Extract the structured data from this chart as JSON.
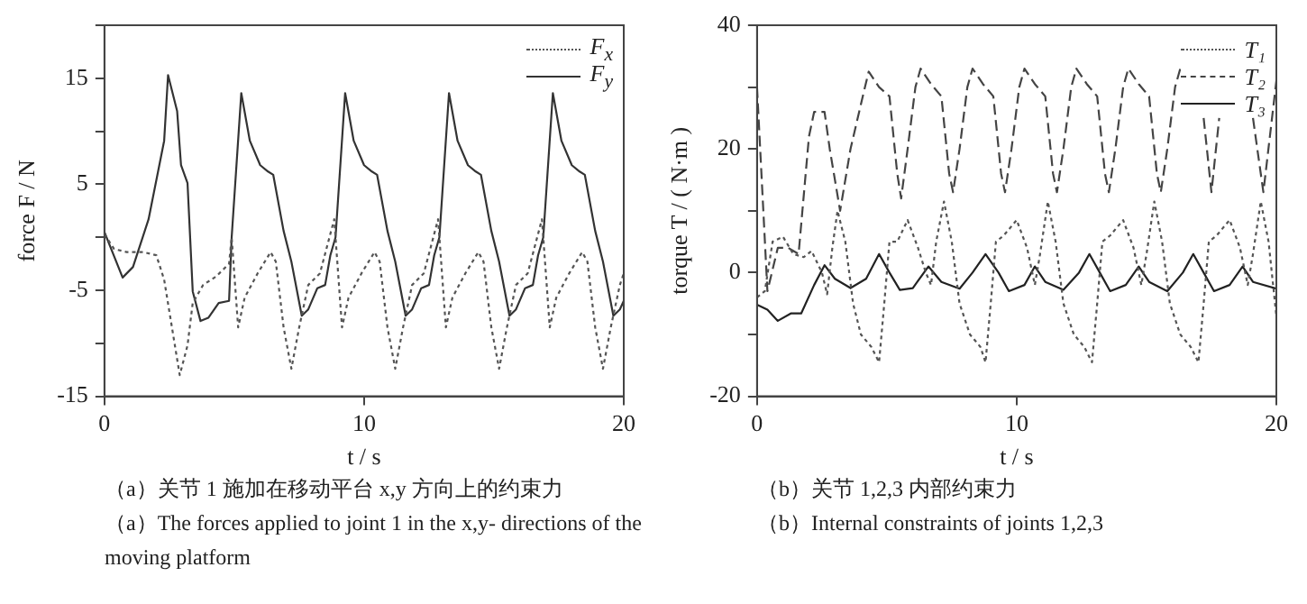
{
  "chart_data": [
    {
      "type": "line",
      "xlabel": "t / s",
      "ylabel": "force F / N",
      "xlim": [
        0,
        20
      ],
      "xticks": [
        0,
        10,
        20
      ],
      "ylim": [
        -15,
        20
      ],
      "yticks": [
        -15,
        {
          "value": -10,
          "label": null
        },
        -5,
        {
          "value": 0,
          "label": null
        },
        5,
        {
          "value": 10,
          "label": null
        },
        15,
        {
          "value": 20,
          "label": null
        }
      ],
      "grid": false,
      "legend": "top right",
      "marker": "none",
      "annotations": [
        "（a）关节 1 施加在移动平台 x,y 方向上的约束力",
        "（a）The forces applied to joint 1 in the x,y- directions of the moving platform"
      ],
      "series": [
        {
          "name": "F$_{x}$",
          "color": "#555555",
          "line_style": "dotted",
          "x": [
            0,
            0.37,
            0.86,
            1.5,
            2.0,
            2.3,
            2.6,
            2.9,
            3.2,
            3.4,
            3.8,
            4.3,
            4.8,
            4.9,
            5.15,
            5.4,
            5.9,
            6.4,
            6.6,
            6.9,
            7.2,
            7.5,
            7.85,
            8.3,
            8.85,
            9.15,
            9.4,
            9.9,
            10.4,
            10.6,
            10.9,
            11.2,
            11.5,
            11.85,
            12.3,
            12.85,
            13.15,
            13.4,
            13.9,
            14.4,
            14.6,
            14.9,
            15.2,
            15.5,
            15.85,
            16.3,
            16.85,
            17.15,
            17.4,
            17.9,
            18.4,
            18.6,
            18.9,
            19.2,
            19.5,
            19.85,
            20
          ],
          "values": [
            0.3,
            -1.1,
            -1.4,
            -1.4,
            -1.7,
            -4,
            -8.5,
            -13,
            -10.2,
            -6.2,
            -4.5,
            -3.7,
            -2.5,
            0,
            -8.5,
            -5.7,
            -3.4,
            -1.4,
            -2.3,
            -8.5,
            -12.4,
            -8.5,
            -4.5,
            -3.4,
            1.7,
            -8.5,
            -5.7,
            -3.4,
            -1.4,
            -2.3,
            -8.5,
            -12.4,
            -8.5,
            -4.5,
            -3.4,
            1.7,
            -8.5,
            -5.7,
            -3.4,
            -1.4,
            -2.3,
            -8.5,
            -12.4,
            -8.5,
            -4.5,
            -3.4,
            1.7,
            -8.5,
            -5.7,
            -3.4,
            -1.4,
            -2.3,
            -8.5,
            -12.4,
            -8.5,
            -4.5,
            -3.4
          ]
        },
        {
          "name": "F$_{y}$",
          "color": "#333333",
          "line_style": "solid",
          "x": [
            0,
            0.7,
            1.1,
            1.7,
            2.3,
            2.45,
            2.8,
            2.95,
            3.2,
            3.4,
            3.7,
            4.0,
            4.4,
            4.8,
            4.9,
            5.27,
            5.6,
            6.0,
            6.3,
            6.5,
            6.9,
            7.2,
            7.6,
            7.85,
            8.2,
            8.5,
            8.7,
            8.9,
            9.27,
            9.6,
            10.0,
            10.3,
            10.5,
            10.9,
            11.2,
            11.6,
            11.85,
            12.2,
            12.5,
            12.7,
            12.9,
            13.27,
            13.6,
            14.0,
            14.3,
            14.5,
            14.9,
            15.2,
            15.6,
            15.85,
            16.2,
            16.5,
            16.7,
            16.9,
            17.27,
            17.6,
            18.0,
            18.3,
            18.5,
            18.9,
            19.2,
            19.6,
            19.85,
            20
          ],
          "values": [
            0.5,
            -3.8,
            -2.8,
            1.7,
            9.1,
            15.3,
            11.9,
            6.8,
            5.1,
            -5.1,
            -7.9,
            -7.6,
            -6.2,
            -6,
            0,
            13.6,
            9.1,
            6.8,
            6.2,
            5.9,
            0.6,
            -2.3,
            -7.4,
            -6.8,
            -4.8,
            -4.5,
            -1.7,
            0,
            13.6,
            9.1,
            6.8,
            6.2,
            5.9,
            0.6,
            -2.3,
            -7.4,
            -6.8,
            -4.8,
            -4.5,
            -1.7,
            0,
            13.6,
            9.1,
            6.8,
            6.2,
            5.9,
            0.6,
            -2.3,
            -7.4,
            -6.8,
            -4.8,
            -4.5,
            -1.7,
            0,
            13.6,
            9.1,
            6.8,
            6.2,
            5.9,
            0.6,
            -2.3,
            -7.4,
            -6.8,
            -6
          ]
        }
      ]
    },
    {
      "type": "line",
      "xlabel": "t / s",
      "ylabel": "torque T / ( N·m )",
      "xlim": [
        0,
        20
      ],
      "xticks": [
        0,
        10,
        20
      ],
      "ylim": [
        -20,
        40
      ],
      "yticks": [
        -20,
        {
          "value": -10,
          "label": null
        },
        0,
        {
          "value": 10,
          "label": null
        },
        20,
        {
          "value": 30,
          "label": null
        },
        40
      ],
      "grid": false,
      "legend": "top right",
      "marker": "none",
      "annotations": [
        "（b）关节 1,2,3 内部约束力",
        "（b）Internal constraints of joints 1,2,3"
      ],
      "series": [
        {
          "name": "T₁",
          "color": "#555555",
          "line_style": "dotted",
          "x": [
            0,
            0.3,
            0.6,
            1.0,
            1.4,
            1.8,
            2.1,
            2.5,
            2.7,
            2.9,
            3.1,
            3.4,
            3.7,
            4.0,
            4.4,
            4.7,
            4.9,
            5.1,
            5.4,
            5.8,
            6.2,
            6.5,
            6.7,
            6.9,
            7.2,
            7.5,
            7.8,
            8.2,
            8.6,
            8.8,
            9.0,
            9.2,
            9.5,
            10.0,
            10.4,
            10.7,
            10.9,
            11.2,
            11.5,
            11.8,
            12.2,
            12.6,
            12.9,
            13.1,
            13.3,
            13.6,
            14.1,
            14.5,
            14.8,
            15.0,
            15.3,
            15.6,
            15.9,
            16.3,
            16.7,
            17.0,
            17.2,
            17.4,
            17.7,
            18.2,
            18.6,
            18.9,
            19.1,
            19.4,
            19.7,
            20
          ],
          "values": [
            -4,
            -3,
            5,
            5.8,
            3,
            2.5,
            3.5,
            0,
            -3.5,
            4,
            10,
            5,
            -5,
            -10,
            -12,
            -14.5,
            -5,
            5,
            5,
            8.5,
            4,
            0,
            -2,
            5,
            11.5,
            5,
            -5,
            -10,
            -12,
            -14.5,
            -5,
            5,
            6,
            8.5,
            4,
            -2,
            3,
            11.5,
            5,
            -5,
            -10,
            -12,
            -14.5,
            -5,
            5,
            6,
            8.5,
            4,
            -2,
            3,
            11.5,
            5,
            -5,
            -10,
            -12,
            -14.5,
            -5,
            5,
            6,
            8.5,
            4,
            -2,
            3,
            11.5,
            5,
            -7
          ]
        },
        {
          "name": "T₂",
          "color": "#444444",
          "line_style": "dashed",
          "x": [
            0,
            0.4,
            0.8,
            1.2,
            1.6,
            2.0,
            2.2,
            2.6,
            2.8,
            3.2,
            3.6,
            4.1,
            4.3,
            4.7,
            5.1,
            5.4,
            5.55,
            5.8,
            6.1,
            6.3,
            6.7,
            7.1,
            7.4,
            7.55,
            7.8,
            8.1,
            8.3,
            8.7,
            9.1,
            9.4,
            9.55,
            9.8,
            10.1,
            10.3,
            10.7,
            11.1,
            11.4,
            11.55,
            11.8,
            12.1,
            12.3,
            12.7,
            13.1,
            13.4,
            13.55,
            13.8,
            14.1,
            14.3,
            14.7,
            15.1,
            15.4,
            15.55,
            15.8,
            16.1,
            16.3,
            16.7,
            17.2,
            17.5,
            17.8,
            18.4,
            19.1,
            19.5,
            20
          ],
          "values": [
            30,
            -3,
            4,
            4,
            3,
            22,
            26,
            26,
            20,
            10,
            20,
            29,
            32.5,
            30,
            28.5,
            16,
            12,
            20,
            30,
            33,
            30.5,
            28.5,
            16,
            13,
            20,
            30,
            33,
            30.5,
            28.5,
            16,
            13,
            20,
            30,
            33,
            30.5,
            28.5,
            16,
            13,
            20,
            30,
            33,
            30.5,
            28.5,
            16,
            13,
            20,
            30,
            33,
            30.5,
            28.5,
            16,
            13,
            20,
            30,
            33,
            null,
            25,
            13,
            25,
            null,
            25,
            13,
            31
          ]
        },
        {
          "name": "T₃",
          "color": "#222222",
          "line_style": "solid",
          "x": [
            0,
            0.4,
            0.8,
            1.3,
            1.7,
            2.2,
            2.6,
            3.0,
            3.6,
            4.2,
            4.7,
            5.1,
            5.5,
            6.0,
            6.6,
            7.1,
            7.8,
            8.3,
            8.8,
            9.3,
            9.7,
            10.3,
            10.7,
            11.1,
            11.8,
            12.4,
            12.8,
            13.2,
            13.6,
            14.2,
            14.7,
            15.1,
            15.8,
            16.4,
            16.8,
            17.2,
            17.6,
            18.2,
            18.7,
            19.1,
            20
          ],
          "values": [
            -5.2,
            -6,
            -7.8,
            -6.6,
            -6.6,
            -2,
            1.2,
            -1,
            -2.5,
            -1,
            3,
            0,
            -2.8,
            -2.5,
            1,
            -1.5,
            -2.6,
            0,
            3,
            0,
            -3,
            -2,
            1,
            -1.5,
            -2.8,
            0,
            3,
            0,
            -3,
            -2,
            1,
            -1.5,
            -3,
            0,
            3,
            0,
            -3,
            -2,
            1,
            -1.5,
            -2.6
          ]
        }
      ]
    }
  ]
}
